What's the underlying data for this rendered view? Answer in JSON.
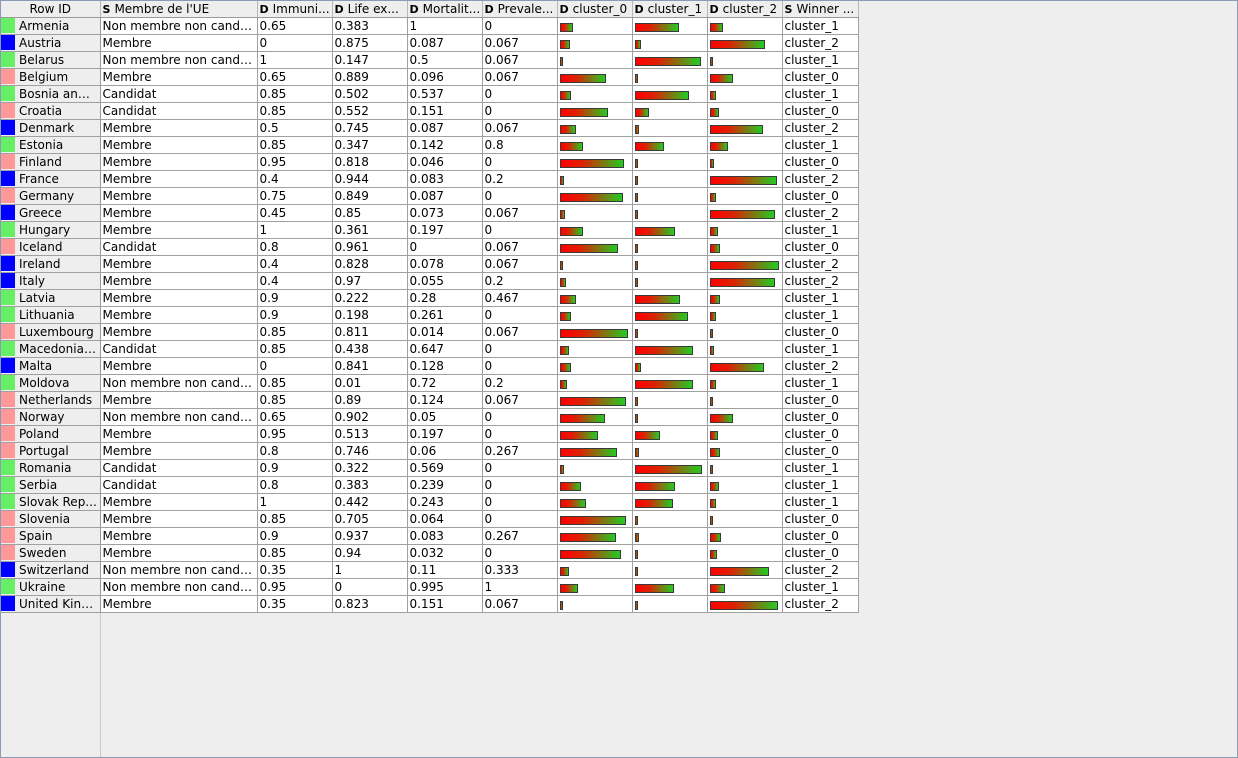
{
  "colors": {
    "cluster_0": "#ff9999",
    "cluster_1": "#66ee66",
    "cluster_2": "#0000ff"
  },
  "columns": [
    {
      "type": "",
      "label": "Row ID"
    },
    {
      "type": "S",
      "label": "Membre de l'UE"
    },
    {
      "type": "D",
      "label": "Immuni..."
    },
    {
      "type": "D",
      "label": "Life ex..."
    },
    {
      "type": "D",
      "label": "Mortalit..."
    },
    {
      "type": "D",
      "label": "Prevale..."
    },
    {
      "type": "D",
      "label": "cluster_0"
    },
    {
      "type": "D",
      "label": "cluster_1"
    },
    {
      "type": "D",
      "label": "cluster_2"
    },
    {
      "type": "S",
      "label": "Winner ..."
    }
  ],
  "rows": [
    {
      "id": "Armenia",
      "member": "Non membre non candi...",
      "immun": "0.65",
      "life": "0.383",
      "mort": "1",
      "prev": "0",
      "c0": 0.18,
      "c1": 0.62,
      "c2": 0.18,
      "winner": "cluster_1"
    },
    {
      "id": "Austria",
      "member": "Membre",
      "immun": "0",
      "life": "0.875",
      "mort": "0.087",
      "prev": "0.067",
      "c0": 0.14,
      "c1": 0.08,
      "c2": 0.78,
      "winner": "cluster_2"
    },
    {
      "id": "Belarus",
      "member": "Non membre non candi...",
      "immun": "1",
      "life": "0.147",
      "mort": "0.5",
      "prev": "0.067",
      "c0": 0.04,
      "c1": 0.93,
      "c2": 0.03,
      "winner": "cluster_1"
    },
    {
      "id": "Belgium",
      "member": "Membre",
      "immun": "0.65",
      "life": "0.889",
      "mort": "0.096",
      "prev": "0.067",
      "c0": 0.65,
      "c1": 0.04,
      "c2": 0.33,
      "winner": "cluster_0"
    },
    {
      "id": "Bosnia and ...",
      "member": "Candidat",
      "immun": "0.85",
      "life": "0.502",
      "mort": "0.537",
      "prev": "0",
      "c0": 0.16,
      "c1": 0.76,
      "c2": 0.08,
      "winner": "cluster_1"
    },
    {
      "id": "Croatia",
      "member": "Candidat",
      "immun": "0.85",
      "life": "0.552",
      "mort": "0.151",
      "prev": "0",
      "c0": 0.68,
      "c1": 0.2,
      "c2": 0.12,
      "winner": "cluster_0"
    },
    {
      "id": "Denmark",
      "member": "Membre",
      "immun": "0.5",
      "life": "0.745",
      "mort": "0.087",
      "prev": "0.067",
      "c0": 0.22,
      "c1": 0.05,
      "c2": 0.74,
      "winner": "cluster_2"
    },
    {
      "id": "Estonia",
      "member": "Membre",
      "immun": "0.85",
      "life": "0.347",
      "mort": "0.142",
      "prev": "0.8",
      "c0": 0.33,
      "c1": 0.41,
      "c2": 0.26,
      "winner": "cluster_1"
    },
    {
      "id": "Finland",
      "member": "Membre",
      "immun": "0.95",
      "life": "0.818",
      "mort": "0.046",
      "prev": "0",
      "c0": 0.9,
      "c1": 0.03,
      "c2": 0.06,
      "winner": "cluster_0"
    },
    {
      "id": "France",
      "member": "Membre",
      "immun": "0.4",
      "life": "0.944",
      "mort": "0.083",
      "prev": "0.2",
      "c0": 0.06,
      "c1": 0.02,
      "c2": 0.94,
      "winner": "cluster_2"
    },
    {
      "id": "Germany",
      "member": "Membre",
      "immun": "0.75",
      "life": "0.849",
      "mort": "0.087",
      "prev": "0",
      "c0": 0.89,
      "c1": 0.02,
      "c2": 0.08,
      "winner": "cluster_0"
    },
    {
      "id": "Greece",
      "member": "Membre",
      "immun": "0.45",
      "life": "0.85",
      "mort": "0.073",
      "prev": "0.067",
      "c0": 0.07,
      "c1": 0.02,
      "c2": 0.92,
      "winner": "cluster_2"
    },
    {
      "id": "Hungary",
      "member": "Membre",
      "immun": "1",
      "life": "0.361",
      "mort": "0.197",
      "prev": "0",
      "c0": 0.32,
      "c1": 0.57,
      "c2": 0.11,
      "winner": "cluster_1"
    },
    {
      "id": "Iceland",
      "member": "Candidat",
      "immun": "0.8",
      "life": "0.961",
      "mort": "0",
      "prev": "0.067",
      "c0": 0.82,
      "c1": 0.04,
      "c2": 0.14,
      "winner": "cluster_0"
    },
    {
      "id": "Ireland",
      "member": "Membre",
      "immun": "0.4",
      "life": "0.828",
      "mort": "0.078",
      "prev": "0.067",
      "c0": 0.03,
      "c1": 0.01,
      "c2": 0.97,
      "winner": "cluster_2"
    },
    {
      "id": "Italy",
      "member": "Membre",
      "immun": "0.4",
      "life": "0.97",
      "mort": "0.055",
      "prev": "0.2",
      "c0": 0.08,
      "c1": 0.02,
      "c2": 0.91,
      "winner": "cluster_2"
    },
    {
      "id": "Latvia",
      "member": "Membre",
      "immun": "0.9",
      "life": "0.222",
      "mort": "0.28",
      "prev": "0.467",
      "c0": 0.22,
      "c1": 0.64,
      "c2": 0.14,
      "winner": "cluster_1"
    },
    {
      "id": "Lithuania",
      "member": "Membre",
      "immun": "0.9",
      "life": "0.198",
      "mort": "0.261",
      "prev": "0",
      "c0": 0.16,
      "c1": 0.75,
      "c2": 0.09,
      "winner": "cluster_1"
    },
    {
      "id": "Luxembourg",
      "member": "Membre",
      "immun": "0.85",
      "life": "0.811",
      "mort": "0.014",
      "prev": "0.067",
      "c0": 0.96,
      "c1": 0.01,
      "c2": 0.03,
      "winner": "cluster_0"
    },
    {
      "id": "Macedonia,...",
      "member": "Candidat",
      "immun": "0.85",
      "life": "0.438",
      "mort": "0.647",
      "prev": "0",
      "c0": 0.12,
      "c1": 0.82,
      "c2": 0.06,
      "winner": "cluster_1"
    },
    {
      "id": "Malta",
      "member": "Membre",
      "immun": "0",
      "life": "0.841",
      "mort": "0.128",
      "prev": "0",
      "c0": 0.16,
      "c1": 0.08,
      "c2": 0.76,
      "winner": "cluster_2"
    },
    {
      "id": "Moldova",
      "member": "Non membre non candi...",
      "immun": "0.85",
      "life": "0.01",
      "mort": "0.72",
      "prev": "0.2",
      "c0": 0.1,
      "c1": 0.82,
      "c2": 0.08,
      "winner": "cluster_1"
    },
    {
      "id": "Netherlands",
      "member": "Membre",
      "immun": "0.85",
      "life": "0.89",
      "mort": "0.124",
      "prev": "0.067",
      "c0": 0.93,
      "c1": 0.03,
      "c2": 0.04,
      "winner": "cluster_0"
    },
    {
      "id": "Norway",
      "member": "Non membre non candi...",
      "immun": "0.65",
      "life": "0.902",
      "mort": "0.05",
      "prev": "0",
      "c0": 0.63,
      "c1": 0.04,
      "c2": 0.33,
      "winner": "cluster_0"
    },
    {
      "id": "Poland",
      "member": "Membre",
      "immun": "0.95",
      "life": "0.513",
      "mort": "0.197",
      "prev": "0",
      "c0": 0.54,
      "c1": 0.35,
      "c2": 0.11,
      "winner": "cluster_0"
    },
    {
      "id": "Portugal",
      "member": "Membre",
      "immun": "0.8",
      "life": "0.746",
      "mort": "0.06",
      "prev": "0.267",
      "c0": 0.8,
      "c1": 0.06,
      "c2": 0.14,
      "winner": "cluster_0"
    },
    {
      "id": "Romania",
      "member": "Candidat",
      "immun": "0.9",
      "life": "0.322",
      "mort": "0.569",
      "prev": "0",
      "c0": 0.05,
      "c1": 0.94,
      "c2": 0.02,
      "winner": "cluster_1"
    },
    {
      "id": "Serbia",
      "member": "Candidat",
      "immun": "0.8",
      "life": "0.383",
      "mort": "0.239",
      "prev": "0",
      "c0": 0.3,
      "c1": 0.57,
      "c2": 0.13,
      "winner": "cluster_1"
    },
    {
      "id": "Slovak Rep...",
      "member": "Membre",
      "immun": "1",
      "life": "0.442",
      "mort": "0.243",
      "prev": "0",
      "c0": 0.37,
      "c1": 0.54,
      "c2": 0.09,
      "winner": "cluster_1"
    },
    {
      "id": "Slovenia",
      "member": "Membre",
      "immun": "0.85",
      "life": "0.705",
      "mort": "0.064",
      "prev": "0",
      "c0": 0.93,
      "c1": 0.03,
      "c2": 0.04,
      "winner": "cluster_0"
    },
    {
      "id": "Spain",
      "member": "Membre",
      "immun": "0.9",
      "life": "0.937",
      "mort": "0.083",
      "prev": "0.267",
      "c0": 0.79,
      "c1": 0.05,
      "c2": 0.15,
      "winner": "cluster_0"
    },
    {
      "id": "Sweden",
      "member": "Membre",
      "immun": "0.85",
      "life": "0.94",
      "mort": "0.032",
      "prev": "0",
      "c0": 0.86,
      "c1": 0.04,
      "c2": 0.1,
      "winner": "cluster_0"
    },
    {
      "id": "Switzerland",
      "member": "Non membre non candi...",
      "immun": "0.35",
      "life": "1",
      "mort": "0.11",
      "prev": "0.333",
      "c0": 0.13,
      "c1": 0.04,
      "c2": 0.83,
      "winner": "cluster_2"
    },
    {
      "id": "Ukraine",
      "member": "Non membre non candi...",
      "immun": "0.95",
      "life": "0",
      "mort": "0.995",
      "prev": "1",
      "c0": 0.26,
      "c1": 0.55,
      "c2": 0.21,
      "winner": "cluster_1"
    },
    {
      "id": "United King...",
      "member": "Membre",
      "immun": "0.35",
      "life": "0.823",
      "mort": "0.151",
      "prev": "0.067",
      "c0": 0.03,
      "c1": 0.01,
      "c2": 0.96,
      "winner": "cluster_2"
    }
  ]
}
